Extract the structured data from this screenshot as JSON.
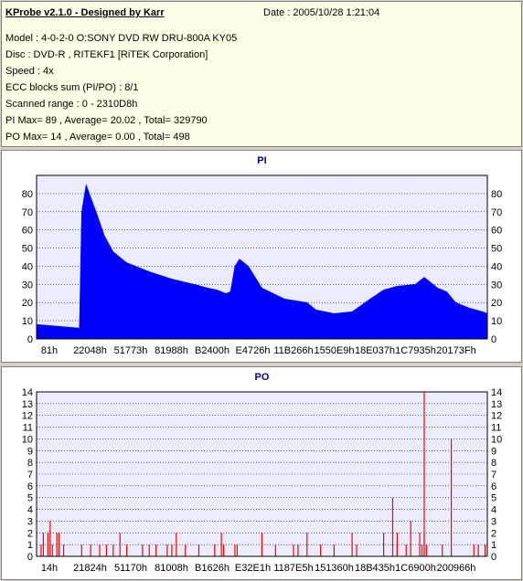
{
  "info": {
    "title": "KProbe v2.1.0 - Designed by Karr",
    "date": "Date : 2005/10/28 1:21:04",
    "model": "Model : 4-0-2-0 O:SONY    DVD RW DRU-800A  KY05",
    "disc": "Disc : DVD-R , RITEKF1 [RiTEK Corporation]",
    "speed": "Speed : 4x",
    "ecc": "ECC blocks sum (PI/PO) : 8/1",
    "scanned": "Scanned range : 0 - 2310D8h",
    "pi_stats": "PI Max= 89 , Average= 20.02 , Total= 329790",
    "po_stats": "PO Max= 14 , Average= 0.00 , Total= 498"
  },
  "chart_data": [
    {
      "type": "area",
      "title": "PI",
      "x_tick_labels": [
        "81h",
        "22048h",
        "51773h",
        "81988h",
        "B2400h",
        "E4726h",
        "11B266h",
        "1550E9h",
        "18E037h",
        "1C7935h",
        "20173Fh"
      ],
      "ylim": [
        0,
        90
      ],
      "y_ticks": [
        0,
        10,
        20,
        30,
        40,
        50,
        60,
        70,
        80
      ],
      "grid": true,
      "color": "#0000ff",
      "profile_x_fraction": [
        0.0,
        0.095,
        0.1,
        0.11,
        0.12,
        0.135,
        0.15,
        0.17,
        0.2,
        0.25,
        0.3,
        0.35,
        0.38,
        0.4,
        0.41,
        0.42,
        0.43,
        0.44,
        0.45,
        0.47,
        0.5,
        0.55,
        0.6,
        0.62,
        0.66,
        0.7,
        0.74,
        0.77,
        0.8,
        0.84,
        0.86,
        0.89,
        0.91,
        0.93,
        0.96,
        0.99,
        1.0
      ],
      "values": [
        8,
        6,
        70,
        85,
        78,
        68,
        57,
        48,
        42,
        37,
        33,
        30,
        28,
        27,
        26,
        25,
        26,
        40,
        44,
        40,
        28,
        22,
        20,
        16,
        14,
        15,
        22,
        27,
        29,
        30,
        34,
        28,
        26,
        20,
        17,
        15,
        14
      ]
    },
    {
      "type": "bar",
      "title": "PO",
      "x_tick_labels": [
        "14h",
        "21824h",
        "51170h",
        "81008h",
        "B1626h",
        "E32E1h",
        "1187E5h",
        "151360h",
        "18B435h",
        "1C6900h",
        "200966h"
      ],
      "ylim": [
        0,
        14
      ],
      "y_ticks": [
        0,
        1,
        2,
        3,
        4,
        5,
        6,
        7,
        8,
        9,
        10,
        11,
        12,
        13,
        14
      ],
      "grid": true,
      "color": "#ff0000",
      "x_fraction": [
        0.01,
        0.015,
        0.025,
        0.03,
        0.035,
        0.045,
        0.05,
        0.06,
        0.1,
        0.12,
        0.14,
        0.155,
        0.17,
        0.185,
        0.2,
        0.235,
        0.25,
        0.265,
        0.29,
        0.3,
        0.31,
        0.33,
        0.36,
        0.395,
        0.41,
        0.415,
        0.44,
        0.445,
        0.5,
        0.5,
        0.53,
        0.57,
        0.58,
        0.6,
        0.63,
        0.66,
        0.7,
        0.71,
        0.77,
        0.79,
        0.8,
        0.8,
        0.82,
        0.83,
        0.85,
        0.855,
        0.86,
        0.86,
        0.865,
        0.9,
        0.92,
        0.97,
        0.98,
        0.995
      ],
      "values": [
        1,
        2,
        2,
        3,
        1,
        2,
        2,
        1,
        1,
        1,
        1,
        1,
        1,
        2,
        1,
        1,
        1,
        1,
        1,
        1,
        2,
        1,
        1,
        1,
        2,
        1,
        1,
        1,
        1,
        2,
        1,
        1,
        1,
        2,
        1,
        1,
        2,
        1,
        2,
        5,
        1,
        2,
        1,
        3,
        2,
        1,
        14,
        2,
        1,
        1,
        10,
        1,
        1,
        1
      ]
    }
  ]
}
